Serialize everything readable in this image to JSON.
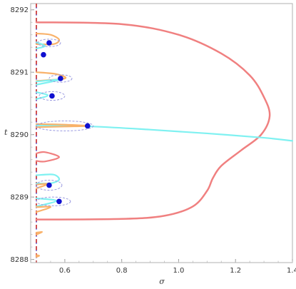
{
  "chart_data": {
    "type": "line",
    "title": "",
    "xlabel": "σ",
    "ylabel": "t",
    "xlim": [
      0.48,
      1.4
    ],
    "ylim": [
      8287.95,
      8292.1
    ],
    "grid": false,
    "frame": true,
    "x_ticks": [
      0.6,
      0.8,
      1.0,
      1.2,
      1.4
    ],
    "x_tick_labels": [
      "0.6",
      "0.8",
      "1.0",
      "1.2",
      "1.4"
    ],
    "y_ticks": [
      8288,
      8289,
      8290,
      8291,
      8292
    ],
    "y_tick_labels": [
      "8288",
      "8289",
      "8290",
      "8291",
      "8292"
    ],
    "colors": {
      "red": "#f08080",
      "orange": "#f9b26a",
      "cyan": "#7ff1f1",
      "blue": "#1010d0",
      "dashed": "#9a9ae0",
      "critical_line": "#d05050",
      "critical_line_dash": "#6060e0"
    },
    "critical_line": {
      "x": 0.5
    },
    "series": [
      {
        "color_key": "red",
        "curve": "large loop",
        "points": [
          [
            0.5,
            8291.8
          ],
          [
            0.8,
            8291.77
          ],
          [
            1.0,
            8291.6
          ],
          [
            1.15,
            8291.3
          ],
          [
            1.25,
            8290.95
          ],
          [
            1.3,
            8290.6
          ],
          [
            1.32,
            8290.3
          ],
          [
            1.29,
            8290.0
          ],
          [
            1.22,
            8289.75
          ],
          [
            1.15,
            8289.5
          ],
          [
            1.12,
            8289.3
          ],
          [
            1.1,
            8289.1
          ],
          [
            1.05,
            8288.85
          ],
          [
            0.95,
            8288.7
          ],
          [
            0.8,
            8288.65
          ],
          [
            0.5,
            8288.64
          ]
        ]
      },
      {
        "color_key": "red",
        "curve": "small loop",
        "points": [
          [
            0.5,
            8289.7
          ],
          [
            0.53,
            8289.72
          ],
          [
            0.58,
            8289.64
          ],
          [
            0.53,
            8289.57
          ],
          [
            0.5,
            8289.58
          ]
        ]
      },
      {
        "color_key": "cyan",
        "curve": "escaping",
        "points": [
          [
            0.5,
            8290.15
          ],
          [
            0.7,
            8290.13
          ],
          [
            0.9,
            8290.08
          ],
          [
            1.1,
            8290.02
          ],
          [
            1.3,
            8289.95
          ],
          [
            1.4,
            8289.9
          ]
        ]
      },
      {
        "color_key": "orange",
        "curve": "loop",
        "points": [
          [
            0.5,
            8291.62
          ],
          [
            0.55,
            8291.6
          ],
          [
            0.58,
            8291.52
          ],
          [
            0.56,
            8291.45
          ],
          [
            0.5,
            8291.45
          ]
        ]
      },
      {
        "color_key": "cyan",
        "curve": "loop",
        "points": [
          [
            0.5,
            8291.48
          ],
          [
            0.53,
            8291.42
          ],
          [
            0.5,
            8291.38
          ]
        ]
      },
      {
        "color_key": "orange",
        "curve": "loop",
        "points": [
          [
            0.5,
            8291.0
          ],
          [
            0.57,
            8290.97
          ],
          [
            0.6,
            8290.9
          ],
          [
            0.5,
            8290.86
          ]
        ]
      },
      {
        "color_key": "cyan",
        "curve": "loop",
        "points": [
          [
            0.5,
            8290.85
          ],
          [
            0.58,
            8290.88
          ],
          [
            0.5,
            8290.8
          ]
        ]
      },
      {
        "color_key": "cyan",
        "curve": "loop",
        "points": [
          [
            0.5,
            8290.68
          ],
          [
            0.54,
            8290.63
          ],
          [
            0.5,
            8290.57
          ]
        ]
      },
      {
        "color_key": "orange",
        "curve": "loop",
        "points": [
          [
            0.5,
            8290.17
          ],
          [
            0.6,
            8290.16
          ],
          [
            0.68,
            8290.14
          ],
          [
            0.6,
            8290.13
          ],
          [
            0.5,
            8290.12
          ]
        ]
      },
      {
        "color_key": "cyan",
        "curve": "loop",
        "points": [
          [
            0.5,
            8289.35
          ],
          [
            0.56,
            8289.36
          ],
          [
            0.58,
            8289.28
          ],
          [
            0.55,
            8289.22
          ],
          [
            0.5,
            8289.22
          ]
        ]
      },
      {
        "color_key": "orange",
        "curve": "loop",
        "points": [
          [
            0.5,
            8289.2
          ],
          [
            0.54,
            8289.21
          ],
          [
            0.5,
            8289.14
          ]
        ]
      },
      {
        "color_key": "cyan",
        "curve": "loop",
        "points": [
          [
            0.5,
            8288.98
          ],
          [
            0.57,
            8288.94
          ],
          [
            0.5,
            8288.85
          ]
        ]
      },
      {
        "color_key": "orange",
        "curve": "loop",
        "points": [
          [
            0.5,
            8288.84
          ],
          [
            0.55,
            8288.84
          ],
          [
            0.5,
            8288.76
          ]
        ]
      },
      {
        "color_key": "orange",
        "curve": "loop",
        "points": [
          [
            0.5,
            8288.43
          ],
          [
            0.52,
            8288.44
          ],
          [
            0.5,
            8288.4
          ]
        ]
      },
      {
        "color_key": "orange",
        "curve": "loop",
        "points": [
          [
            0.5,
            8288.07
          ],
          [
            0.51,
            8288.06
          ],
          [
            0.5,
            8288.04
          ]
        ]
      }
    ],
    "points": [
      {
        "x": 0.545,
        "y": 8291.47,
        "color_key": "blue"
      },
      {
        "x": 0.525,
        "y": 8291.28,
        "color_key": "blue"
      },
      {
        "x": 0.585,
        "y": 8290.9,
        "color_key": "blue"
      },
      {
        "x": 0.555,
        "y": 8290.62,
        "color_key": "blue"
      },
      {
        "x": 0.68,
        "y": 8290.14,
        "color_key": "blue"
      },
      {
        "x": 0.545,
        "y": 8289.19,
        "color_key": "blue"
      },
      {
        "x": 0.58,
        "y": 8288.93,
        "color_key": "blue"
      }
    ],
    "dashed_ellipses": [
      {
        "cx": 0.545,
        "cy": 8291.47,
        "rx": 0.04,
        "ry": 0.06
      },
      {
        "cx": 0.585,
        "cy": 8290.9,
        "rx": 0.04,
        "ry": 0.06
      },
      {
        "cx": 0.555,
        "cy": 8290.62,
        "rx": 0.045,
        "ry": 0.07
      },
      {
        "cx": 0.6,
        "cy": 8290.14,
        "rx": 0.1,
        "ry": 0.08
      },
      {
        "cx": 0.545,
        "cy": 8289.19,
        "rx": 0.045,
        "ry": 0.08
      },
      {
        "cx": 0.56,
        "cy": 8288.93,
        "rx": 0.06,
        "ry": 0.07
      }
    ]
  }
}
